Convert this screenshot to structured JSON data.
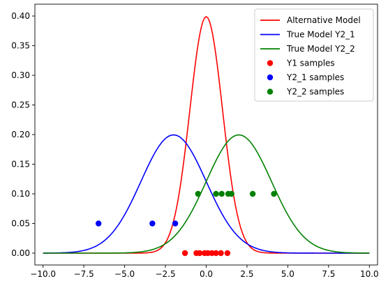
{
  "chart_data": {
    "type": "line",
    "title": "",
    "xlabel": "",
    "ylabel": "",
    "xlim": [
      -10.5,
      10.5
    ],
    "ylim": [
      -0.02,
      0.42
    ],
    "xticks": [
      -10.0,
      -7.5,
      -5.0,
      -2.5,
      0.0,
      2.5,
      5.0,
      7.5,
      10.0
    ],
    "xtick_labels": [
      "−10.0",
      "−7.5",
      "−5.0",
      "−2.5",
      "0.0",
      "2.5",
      "5.0",
      "7.5",
      "10.0"
    ],
    "yticks": [
      0.0,
      0.05,
      0.1,
      0.15,
      0.2,
      0.25,
      0.3,
      0.35,
      0.4
    ],
    "ytick_labels": [
      "0.00",
      "0.05",
      "0.10",
      "0.15",
      "0.20",
      "0.25",
      "0.30",
      "0.35",
      "0.40"
    ],
    "grid": false,
    "legend_position": "top-right",
    "curves": [
      {
        "name": "Alternative Model",
        "color": "#ff0000",
        "distribution": "normal",
        "mean": 0.0,
        "std": 1.0,
        "x_range": [
          -10,
          10
        ]
      },
      {
        "name": "True Model Y2_1",
        "color": "#0000ff",
        "distribution": "normal",
        "mean": -2.0,
        "std": 2.0,
        "x_range": [
          -10,
          10
        ]
      },
      {
        "name": "True Model Y2_2",
        "color": "#008000",
        "distribution": "normal",
        "mean": 2.0,
        "std": 2.0,
        "x_range": [
          -10,
          10
        ]
      }
    ],
    "scatter_series": [
      {
        "name": "Y1 samples",
        "color": "#ff0000",
        "points": [
          [
            -1.3,
            0.0
          ],
          [
            -0.6,
            0.0
          ],
          [
            -0.4,
            0.0
          ],
          [
            -0.1,
            0.0
          ],
          [
            0.1,
            0.0
          ],
          [
            0.35,
            0.0
          ],
          [
            0.6,
            0.0
          ],
          [
            0.9,
            0.0
          ],
          [
            1.3,
            0.0
          ]
        ]
      },
      {
        "name": "Y2_1 samples",
        "color": "#0000ff",
        "points": [
          [
            -6.6,
            0.05
          ],
          [
            -3.3,
            0.05
          ],
          [
            -1.9,
            0.05
          ]
        ]
      },
      {
        "name": "Y2_2 samples",
        "color": "#008000",
        "points": [
          [
            -0.5,
            0.1
          ],
          [
            0.6,
            0.1
          ],
          [
            0.95,
            0.1
          ],
          [
            1.35,
            0.1
          ],
          [
            1.55,
            0.1
          ],
          [
            2.85,
            0.1
          ],
          [
            4.15,
            0.1
          ]
        ]
      }
    ]
  }
}
